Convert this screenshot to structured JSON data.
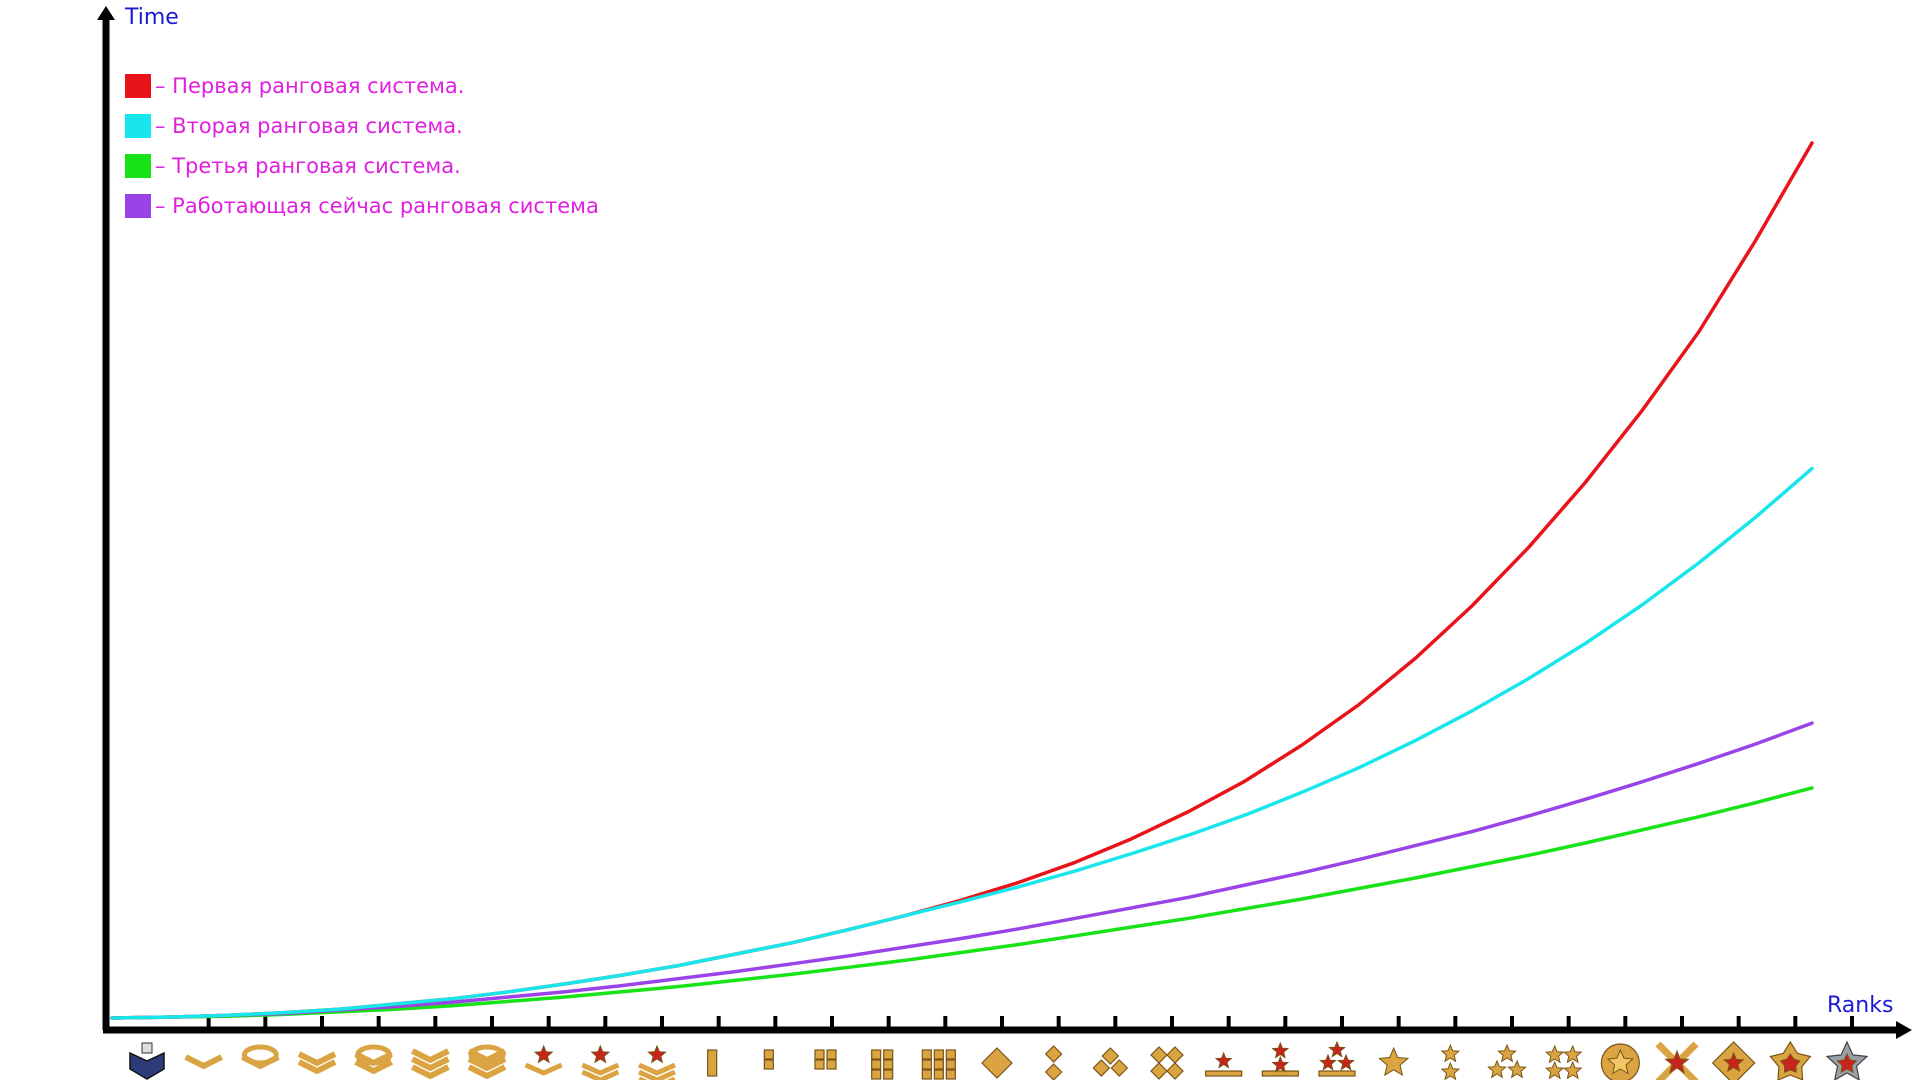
{
  "chart_data": {
    "type": "line",
    "xlabel": "Ranks",
    "ylabel": "Time",
    "grid": false,
    "legend_position": "top-left",
    "x_ticks": 31,
    "x": [
      1,
      2,
      3,
      4,
      5,
      6,
      7,
      8,
      9,
      10,
      11,
      12,
      13,
      14,
      15,
      16,
      17,
      18,
      19,
      20,
      21,
      22,
      23,
      24,
      25,
      26,
      27,
      28,
      29,
      30,
      31
    ],
    "ylim": [
      0,
      100
    ],
    "series": [
      {
        "name": "– Первая ранговая система.",
        "color": "#e8141a",
        "values": [
          0.0,
          0.1,
          0.3,
          0.6,
          1.0,
          1.6,
          2.2,
          3.0,
          3.9,
          4.9,
          6.0,
          7.3,
          8.6,
          10.1,
          11.7,
          13.5,
          15.5,
          17.8,
          20.5,
          23.6,
          27.1,
          31.2,
          35.8,
          41.1,
          47.1,
          53.8,
          61.2,
          69.4,
          78.4,
          88.8,
          100.0
        ]
      },
      {
        "name": "– Вторая ранговая система.",
        "color": "#19e6ea",
        "values": [
          0.0,
          0.1,
          0.3,
          0.6,
          1.0,
          1.6,
          2.2,
          3.0,
          3.9,
          4.9,
          6.0,
          7.3,
          8.6,
          10.1,
          11.7,
          13.3,
          15.0,
          16.8,
          18.8,
          20.9,
          23.2,
          25.8,
          28.6,
          31.7,
          35.1,
          38.8,
          42.8,
          47.2,
          52.0,
          57.2,
          62.8
        ]
      },
      {
        "name": "– Третья ранговая система.",
        "color": "#17e317",
        "values": [
          0.0,
          0.1,
          0.2,
          0.4,
          0.7,
          1.0,
          1.4,
          1.9,
          2.4,
          3.0,
          3.6,
          4.3,
          5.0,
          5.8,
          6.6,
          7.5,
          8.4,
          9.4,
          10.4,
          11.4,
          12.5,
          13.6,
          14.8,
          16.0,
          17.3,
          18.6,
          20.0,
          21.5,
          23.0,
          24.6,
          26.3
        ]
      },
      {
        "name": "– Работающая сейчас ранговая система",
        "color": "#9a44e8",
        "values": [
          0.0,
          0.1,
          0.3,
          0.5,
          0.9,
          1.3,
          1.8,
          2.4,
          3.0,
          3.7,
          4.5,
          5.3,
          6.2,
          7.1,
          8.1,
          9.1,
          10.2,
          11.4,
          12.6,
          13.8,
          15.2,
          16.6,
          18.1,
          19.7,
          21.3,
          23.1,
          25.0,
          27.0,
          29.1,
          31.3,
          33.7
        ]
      }
    ]
  },
  "rank_icons": [
    "recruit-badge-icon",
    "private-chevron-icon",
    "gefreiter-chevron-icon",
    "corporal-chevron-icon",
    "master-corporal-chevron-icon",
    "sergeant-chevron-icon",
    "staff-sergeant-chevron-icon",
    "master-sergeant-star-icon",
    "sergeant-major-star-icon",
    "warrant-officer-star-icon",
    "master-warrant-officer-bar-icon",
    "third-lieutenant-bar-icon",
    "second-lieutenant-bar-icon",
    "lieutenant-bar-icon",
    "first-lieutenant-bar-icon",
    "captain-diamond-icon",
    "major-diamond-icon",
    "lieutenant-colonel-diamond-icon",
    "colonel-diamond-icon",
    "brigadier-star-icon",
    "major-general-star-icon",
    "lieutenant-general-star-icon",
    "general-star-icon",
    "marshal-star-icon",
    "field-marshal-star-icon",
    "commander-star-icon",
    "generalissimo-emblem-icon",
    "legend-cross-icon",
    "legend-diamond-icon",
    "legend-pentagon-icon",
    "legend-star-icon"
  ],
  "colors": {
    "axis": "#000000",
    "axis_title": "#1a1ad6",
    "legend_text": "#e020e0",
    "icon_gold": "#d9a441",
    "icon_dark": "#7a5416",
    "icon_red": "#c8241c"
  }
}
